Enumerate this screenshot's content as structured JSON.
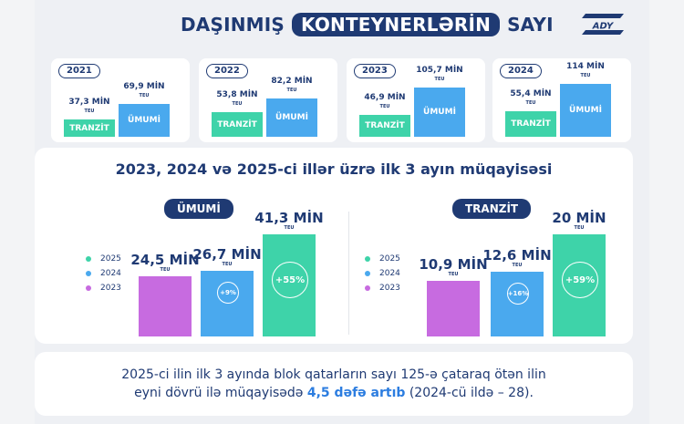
{
  "header": {
    "title_before": "DAŞINMIŞ",
    "title_highlight": "KONTEYNERLƏRİN",
    "title_after": "SAYI",
    "logo_text": "ADY"
  },
  "colors": {
    "navy": "#1f3a73",
    "tranzit": "#3ed3a9",
    "umumi": "#4aa9ee",
    "year2025": "#3ed3a9",
    "year2024": "#4aa9ee",
    "year2023": "#c76be0"
  },
  "chart_data": [
    {
      "type": "bar",
      "title": "2021",
      "categories": [
        "TRANZİT",
        "ÜMUMİ"
      ],
      "values": [
        37.3,
        69.9
      ],
      "value_labels": [
        "37,3 MİN",
        "69,9 MİN"
      ],
      "unit": "TEU"
    },
    {
      "type": "bar",
      "title": "2022",
      "categories": [
        "TRANZİT",
        "ÜMUMİ"
      ],
      "values": [
        53.8,
        82.2
      ],
      "value_labels": [
        "53,8 MİN",
        "82,2 MİN"
      ],
      "unit": "TEU"
    },
    {
      "type": "bar",
      "title": "2023",
      "categories": [
        "TRANZİT",
        "ÜMUMİ"
      ],
      "values": [
        46.9,
        105.7
      ],
      "value_labels": [
        "46,9 MİN",
        "105,7 MİN"
      ],
      "unit": "TEU"
    },
    {
      "type": "bar",
      "title": "2024",
      "categories": [
        "TRANZİT",
        "ÜMUMİ"
      ],
      "values": [
        55.4,
        114
      ],
      "value_labels": [
        "55,4 MİN",
        "114 MİN"
      ],
      "unit": "TEU"
    },
    {
      "type": "bar",
      "title": "ÜMUMİ",
      "categories": [
        "2023",
        "2024",
        "2025"
      ],
      "values": [
        24.5,
        26.7,
        41.3
      ],
      "value_labels": [
        "24,5 MİN",
        "26,7 MİN",
        "41,3 MİN"
      ],
      "unit": "TEU",
      "changes": [
        "",
        "+9%",
        "+55%"
      ],
      "legend": [
        "2025",
        "2024",
        "2023"
      ]
    },
    {
      "type": "bar",
      "title": "TRANZİT",
      "categories": [
        "2023",
        "2024",
        "2025"
      ],
      "values": [
        10.9,
        12.6,
        20
      ],
      "value_labels": [
        "10,9 MİN",
        "12,6 MİN",
        "20 MİN"
      ],
      "unit": "TEU",
      "changes": [
        "",
        "+16%",
        "+59%"
      ],
      "legend": [
        "2025",
        "2024",
        "2023"
      ]
    }
  ],
  "comparison": {
    "title": "2023, 2024 və 2025-ci illər üzrə ilk 3 ayın müqayisəsi"
  },
  "footer": {
    "line1": "2025-ci ilin ilk 3 ayında blok qatarların sayı 125-ə çataraq ötən ilin",
    "line2_start": "eyni dövrü ilə müqayisədə",
    "line2_bold": "4,5 dəfə artıb",
    "line2_end": "(2024-cü ildə – 28)."
  }
}
